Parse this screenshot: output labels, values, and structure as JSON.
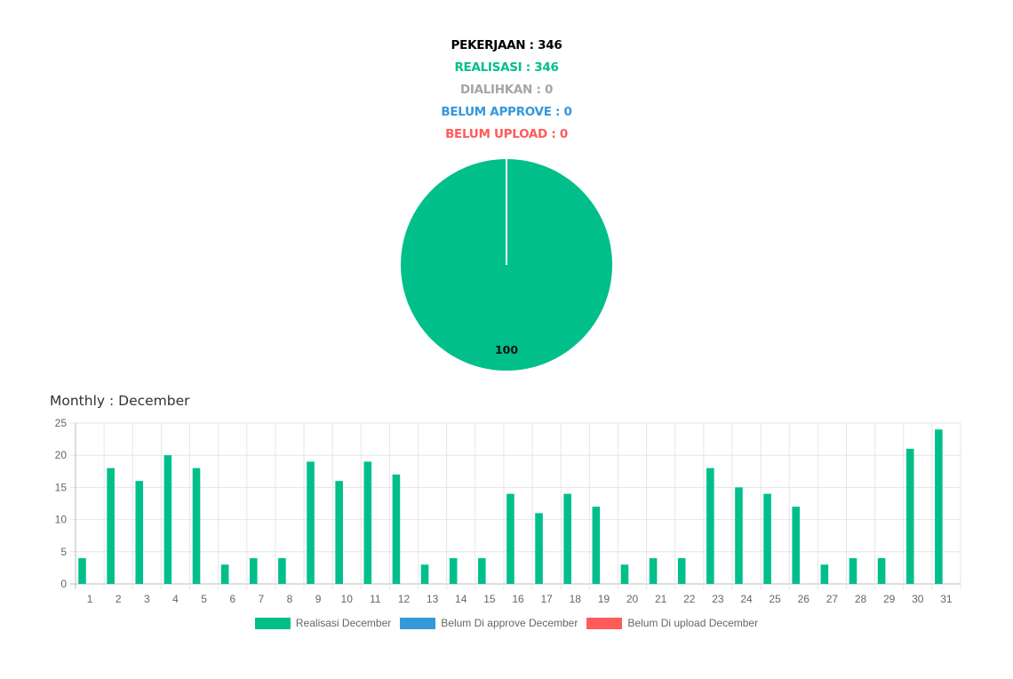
{
  "summary": {
    "pekerjaan": "PEKERJAAN : 346",
    "realisasi": "REALISASI : 346",
    "dialihkan": "DIALIHKAN : 0",
    "belum_approve": "BELUM APPROVE : 0",
    "belum_upload": "BELUM UPLOAD : 0"
  },
  "colors": {
    "black": "#000000",
    "green": "#00bf8b",
    "gray": "#a6a6a6",
    "blue": "#3498db",
    "red": "#ff5b5b"
  },
  "monthly_title": "Monthly : December",
  "chart_data": [
    {
      "type": "pie",
      "slices": [
        {
          "label": "Realisasi",
          "value": 100,
          "color": "#00bf8b"
        },
        {
          "label": "Belum approve",
          "value": 0,
          "color": "#3498db"
        },
        {
          "label": "Belum upload",
          "value": 0,
          "color": "#ff5b5b"
        }
      ],
      "data_label": "100"
    },
    {
      "type": "bar",
      "categories": [
        "1",
        "2",
        "3",
        "4",
        "5",
        "6",
        "7",
        "8",
        "9",
        "10",
        "11",
        "12",
        "13",
        "14",
        "15",
        "16",
        "17",
        "18",
        "19",
        "20",
        "21",
        "22",
        "23",
        "24",
        "25",
        "26",
        "27",
        "28",
        "29",
        "30",
        "31"
      ],
      "series": [
        {
          "name": "Realisasi December",
          "color": "#00bf8b",
          "values": [
            4,
            18,
            16,
            20,
            18,
            3,
            4,
            4,
            19,
            16,
            19,
            17,
            3,
            4,
            4,
            14,
            11,
            14,
            12,
            3,
            4,
            4,
            18,
            15,
            14,
            12,
            3,
            4,
            4,
            21,
            24
          ]
        },
        {
          "name": "Belum Di approve December",
          "color": "#3498db",
          "values": [
            0,
            0,
            0,
            0,
            0,
            0,
            0,
            0,
            0,
            0,
            0,
            0,
            0,
            0,
            0,
            0,
            0,
            0,
            0,
            0,
            0,
            0,
            0,
            0,
            0,
            0,
            0,
            0,
            0,
            0,
            0
          ]
        },
        {
          "name": "Belum Di upload December",
          "color": "#ff5b5b",
          "values": [
            0,
            0,
            0,
            0,
            0,
            0,
            0,
            0,
            0,
            0,
            0,
            0,
            0,
            0,
            0,
            0,
            0,
            0,
            0,
            0,
            0,
            0,
            0,
            0,
            0,
            0,
            0,
            0,
            0,
            0,
            0
          ]
        }
      ],
      "ylim": [
        0,
        25
      ],
      "yticks": [
        0,
        5,
        10,
        15,
        20,
        25
      ],
      "grid": true,
      "legend_position": "bottom"
    }
  ]
}
